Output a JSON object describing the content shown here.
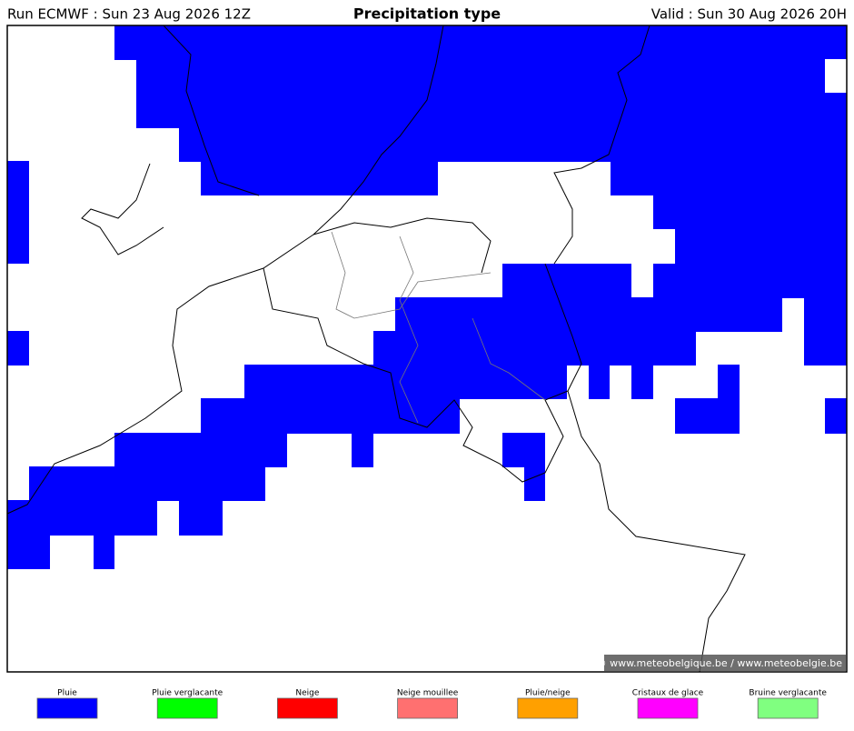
{
  "header": {
    "run": "Run ECMWF : Sun 23 Aug 2026 12Z",
    "title": "Precipitation type",
    "valid": "Valid : Sun 30 Aug 2026 20H"
  },
  "credit": "© www.meteobelgique.be / www.meteobelgie.be",
  "legend": [
    {
      "label": "Pluie",
      "color": "#0000ff"
    },
    {
      "label": "Pluie verglacante",
      "color": "#00ff00"
    },
    {
      "label": "Neige",
      "color": "#ff0000"
    },
    {
      "label": "Neige mouillee",
      "color": "#ff7070"
    },
    {
      "label": "Pluie/neige",
      "color": "#ffa000"
    },
    {
      "label": "Cristaux de glace",
      "color": "#ff00ff"
    },
    {
      "label": "Bruine verglacante",
      "color": "#80ff80"
    }
  ]
}
